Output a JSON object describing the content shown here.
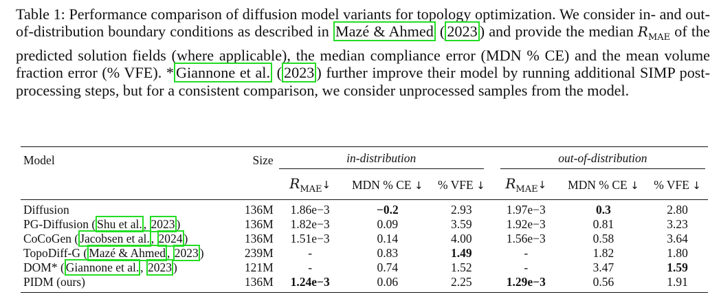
{
  "caption": {
    "label": "Table 1:",
    "p1": " Performance comparison of diffusion model variants for topology optimization. We consider in- and out-of-distribution boundary conditions as described in ",
    "cite1_author": "Mazé & Ahmed",
    "cite1_year": "2023",
    "p2": " and provide the median ",
    "metric_sym": "R",
    "metric_sub": "MAE",
    "p3": " of the predicted solution fields (where applicable), the median compliance error (MDN % CE) and the mean volume fraction error (% VFE). *",
    "cite2_author": "Giannone et al.",
    "cite2_year": "2023",
    "p4": " further improve their model by running additional SIMP post-processing steps, but for a consistent comparison, we consider unprocessed samples from the model."
  },
  "table": {
    "header": {
      "model": "Model",
      "size": "Size",
      "in_dist": "in-distribution",
      "out_dist": "out-of-distribution",
      "metric_sym": "R",
      "metric_sub": "MAE",
      "mdn_ce": "MDN % CE",
      "vfe": "% VFE",
      "arrow": "↓"
    },
    "rows": [
      {
        "name": "Diffusion",
        "cite_author": "",
        "cite_year": "",
        "size": "136M",
        "in_r": "1.86e−3",
        "in_ce": "−0.2",
        "in_vfe": "2.93",
        "out_r": "1.97e−3",
        "out_ce": "0.3",
        "out_vfe": "2.80"
      },
      {
        "name": "PG-Diffusion (",
        "cite_author": "Shu et al.",
        "cite_year": "2023",
        "size": "136M",
        "in_r": "1.82e−3",
        "in_ce": "0.09",
        "in_vfe": "3.59",
        "out_r": "1.92e−3",
        "out_ce": "0.81",
        "out_vfe": "3.23"
      },
      {
        "name": "CoCoGen (",
        "cite_author": "Jacobsen et al.",
        "cite_year": "2024",
        "size": "136M",
        "in_r": "1.51e−3",
        "in_ce": "0.14",
        "in_vfe": "4.00",
        "out_r": "1.56e−3",
        "out_ce": "0.58",
        "out_vfe": "3.64"
      },
      {
        "name": "TopoDiff-G (",
        "cite_author": "Mazé & Ahmed",
        "cite_year": "2023",
        "size": "239M",
        "in_r": "-",
        "in_ce": "0.83",
        "in_vfe": "1.49",
        "out_r": "-",
        "out_ce": "1.82",
        "out_vfe": "1.80"
      },
      {
        "name": "DOM* (",
        "cite_author": "Giannone et al.",
        "cite_year": "2023",
        "size": "121M",
        "in_r": "-",
        "in_ce": "0.74",
        "in_vfe": "1.52",
        "out_r": "-",
        "out_ce": "3.47",
        "out_vfe": "1.59"
      },
      {
        "name": "PIDM (ours)",
        "cite_author": "",
        "cite_year": "",
        "size": "136M",
        "in_r": "1.24e−3",
        "in_ce": "0.06",
        "in_vfe": "2.25",
        "out_r": "1.29e−3",
        "out_ce": "0.56",
        "out_vfe": "1.91"
      }
    ]
  }
}
